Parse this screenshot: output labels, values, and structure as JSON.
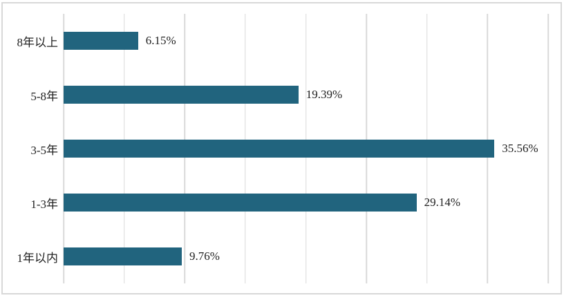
{
  "chart_data": {
    "type": "bar",
    "orientation": "horizontal",
    "title": "",
    "xlabel": "",
    "ylabel": "",
    "categories": [
      "8年以上",
      "5-8年",
      "3-5年",
      "1-3年",
      "1年以内"
    ],
    "values": [
      6.15,
      19.39,
      35.56,
      29.14,
      9.76
    ],
    "value_labels": [
      "6.15%",
      "19.39%",
      "35.56%",
      "29.14%",
      "9.76%"
    ],
    "xlim": [
      0,
      40
    ],
    "gridline_step": 5,
    "grid": true,
    "legend": "none",
    "colors": {
      "bar": "#21647E",
      "gridline": "#D9D9D9",
      "frame_border": "#D8D8D8",
      "text": "#1F1F1F",
      "background": "#FFFFFF"
    }
  }
}
